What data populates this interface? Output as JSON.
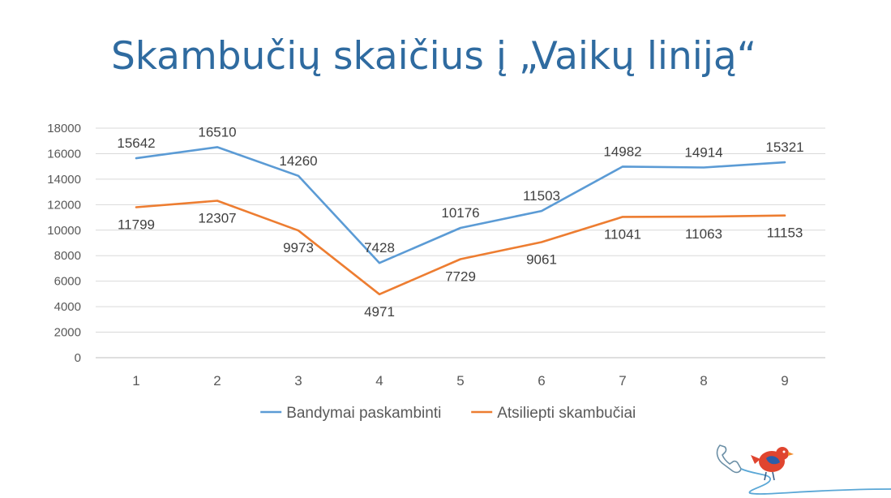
{
  "slide": {
    "title": "Skambučių skaičius į „Vaikų liniją“"
  },
  "chart_data": {
    "type": "line",
    "title": "",
    "xlabel": "",
    "ylabel": "",
    "categories": [
      "1",
      "2",
      "3",
      "4",
      "5",
      "6",
      "7",
      "8",
      "9"
    ],
    "series": [
      {
        "name": "Bandymai paskambinti",
        "color": "#5b9bd5",
        "values": [
          15642,
          16510,
          14260,
          7428,
          10176,
          11503,
          14982,
          14914,
          15321
        ]
      },
      {
        "name": "Atsiliepti skambučiai",
        "color": "#ed7d31",
        "values": [
          11799,
          12307,
          9973,
          4971,
          7729,
          9061,
          11041,
          11063,
          11153
        ]
      }
    ],
    "ylim": [
      0,
      18000
    ],
    "yticks": [
      0,
      2000,
      4000,
      6000,
      8000,
      10000,
      12000,
      14000,
      16000,
      18000
    ],
    "grid": true,
    "legend": "bottom",
    "data_labels": true
  },
  "logo": {
    "icon": "phone-bird-logo",
    "colors": {
      "bird": "#e0452f",
      "wing": "#2c5ea8",
      "line": "#5aa7d6"
    }
  }
}
